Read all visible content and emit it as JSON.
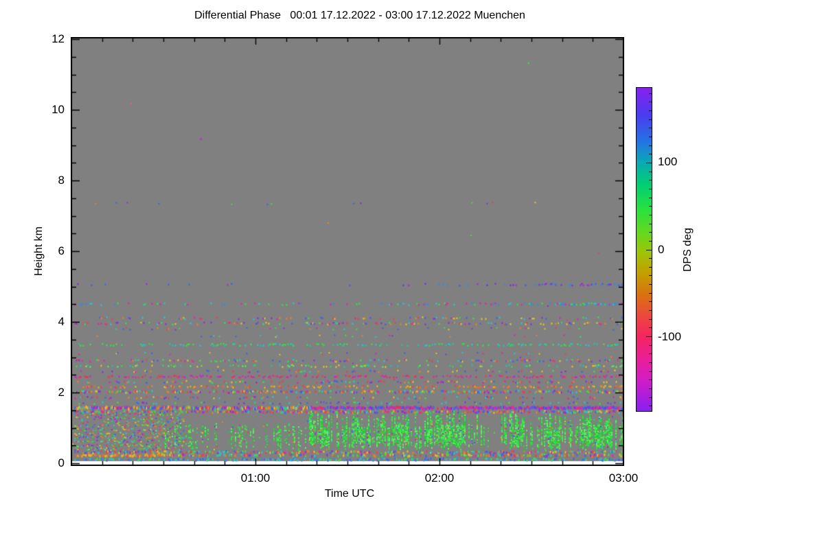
{
  "chart_data": {
    "type": "heatmap",
    "title": "Differential Phase   00:01 17.12.2022 - 03:00 17.12.2022 Muenchen",
    "xlabel": "Time UTC",
    "ylabel": "Height km",
    "x_ticks": [
      {
        "hour": 1,
        "label": "01:00"
      },
      {
        "hour": 2,
        "label": "02:00"
      },
      {
        "hour": 3,
        "label": "03:00"
      }
    ],
    "x_minor_step_min": 10,
    "x_range_hours": [
      0.0167,
      3.0
    ],
    "y_ticks": [
      0,
      2,
      4,
      6,
      8,
      10,
      12
    ],
    "y_minor_step_km": 0.5,
    "y_range_km": [
      0,
      12
    ],
    "background_color": "#808080",
    "no_data_color": "#ffffff",
    "frame_color": "#000000",
    "colorbar": {
      "label": "DPS deg",
      "range": [
        -186,
        186
      ],
      "ticks": [
        {
          "v": 100,
          "label": "100"
        },
        {
          "v": 0,
          "label": "0"
        },
        {
          "v": -100,
          "label": "-100"
        }
      ],
      "minor_step_deg": 10,
      "stops": [
        {
          "v": 186,
          "c": "#8A1FF0"
        },
        {
          "v": 155,
          "c": "#4A3CF0"
        },
        {
          "v": 125,
          "c": "#2472E4"
        },
        {
          "v": 100,
          "c": "#0AAAB4"
        },
        {
          "v": 75,
          "c": "#00CE74"
        },
        {
          "v": 45,
          "c": "#2AE23C"
        },
        {
          "v": 15,
          "c": "#6FD51A"
        },
        {
          "v": -5,
          "c": "#A3C206"
        },
        {
          "v": -30,
          "c": "#C49B00"
        },
        {
          "v": -55,
          "c": "#DC6C14"
        },
        {
          "v": -80,
          "c": "#EE4243"
        },
        {
          "v": -100,
          "c": "#F5255F"
        },
        {
          "v": -125,
          "c": "#EC1E96"
        },
        {
          "v": -150,
          "c": "#D11DC4"
        },
        {
          "v": -186,
          "c": "#8A1FF2"
        }
      ]
    },
    "palettes": {
      "rainbow": [
        "#F23B4C",
        "#F57F17",
        "#E8C520",
        "#3BE049",
        "#22C8D6",
        "#3A62F2",
        "#8A2BE2",
        "#E81FB0"
      ],
      "warm": [
        "#F57F17",
        "#F2A71B",
        "#E8C520",
        "#F23B4C",
        "#EE6A2A"
      ],
      "pinkred": [
        "#F5255F",
        "#E81FB0",
        "#F23B4C",
        "#C724D6"
      ],
      "coolmix": [
        "#22C8D6",
        "#3A62F2",
        "#8A2BE2",
        "#3BE049"
      ],
      "tealgreen": [
        "#18C9A8",
        "#2BE53A",
        "#22C8D6",
        "#3BE049"
      ],
      "greenmix": [
        "#2BE53A",
        "#53F060",
        "#18C9A8",
        "#E8C520"
      ],
      "bluepurple": [
        "#3A62F2",
        "#7A2BF0",
        "#A428E8",
        "#2B8CF0"
      ],
      "cyanblue": [
        "#22C8D6",
        "#2B8CF0",
        "#3BE049",
        "#3A62F2"
      ],
      "bluemag": [
        "#C724D6",
        "#7A2BF0",
        "#E81FB0",
        "#3A62F2",
        "#F5255F"
      ],
      "coolgreen": [
        "#2BE53A",
        "#22C8D6",
        "#2B8CF0",
        "#E81FB0"
      ],
      "green": [
        "#2BE53A",
        "#45EE45",
        "#1ECC30",
        "#63F56A",
        "#30D84A"
      ]
    },
    "noise_bands": [
      {
        "h": 0.1,
        "th": 0.06,
        "d": 0.5,
        "pal": "cyanblue"
      },
      {
        "h": 0.22,
        "th": 0.07,
        "d": 0.8,
        "pal": "warm",
        "t1": 0.55
      },
      {
        "h": 0.22,
        "th": 0.07,
        "d": 0.4,
        "pal": "rainbow",
        "t0": 0.55
      },
      {
        "h": 0.31,
        "th": 0.06,
        "d": 0.55,
        "pal": "rainbow"
      },
      {
        "h": 1.45,
        "th": 0.06,
        "d": 0.6,
        "pal": "rainbow"
      },
      {
        "h": 1.56,
        "th": 0.08,
        "d": 0.95,
        "pal": "rainbow",
        "t1": 1.3
      },
      {
        "h": 1.56,
        "th": 0.08,
        "d": 0.9,
        "pal": "bluemag",
        "t0": 1.3
      },
      {
        "h": 1.7,
        "th": 0.05,
        "d": 0.18,
        "pal": "coolmix"
      },
      {
        "h": 1.85,
        "th": 0.05,
        "d": 0.22,
        "pal": "rainbow"
      },
      {
        "h": 2.02,
        "th": 0.06,
        "d": 0.5,
        "pal": "rainbow"
      },
      {
        "h": 2.16,
        "th": 0.05,
        "d": 0.35,
        "pal": "warm"
      },
      {
        "h": 2.3,
        "th": 0.05,
        "d": 0.25,
        "pal": "rainbow"
      },
      {
        "h": 2.45,
        "th": 0.05,
        "d": 0.4,
        "pal": "pinkred"
      },
      {
        "h": 2.6,
        "th": 0.05,
        "d": 0.15,
        "pal": "rainbow"
      },
      {
        "h": 2.75,
        "th": 0.05,
        "d": 0.25,
        "pal": "greenmix"
      },
      {
        "h": 2.9,
        "th": 0.05,
        "d": 0.3,
        "pal": "rainbow"
      },
      {
        "h": 3.1,
        "th": 0.04,
        "d": 0.08,
        "pal": "rainbow"
      },
      {
        "h": 3.35,
        "th": 0.05,
        "d": 0.3,
        "pal": "tealgreen"
      },
      {
        "h": 3.6,
        "th": 0.04,
        "d": 0.05,
        "pal": "rainbow"
      },
      {
        "h": 3.8,
        "th": 0.04,
        "d": 0.1,
        "pal": "rainbow"
      },
      {
        "h": 3.95,
        "th": 0.05,
        "d": 0.28,
        "pal": "rainbow"
      },
      {
        "h": 4.1,
        "th": 0.05,
        "d": 0.22,
        "pal": "rainbow"
      },
      {
        "h": 4.5,
        "th": 0.05,
        "d": 0.18,
        "pal": "coolgreen",
        "dEnd": 0.6
      },
      {
        "h": 5.05,
        "th": 0.05,
        "d": 0.05,
        "pal": "bluepurple",
        "dEnd": 0.5
      },
      {
        "h": 7.35,
        "th": 0.04,
        "d": 0.04,
        "pal": "rainbow"
      }
    ],
    "sparse_regions": [
      {
        "h0": 1.6,
        "h1": 4.6,
        "d": 0.012,
        "pal": "rainbow"
      },
      {
        "h0": 0.35,
        "h1": 1.42,
        "d": 0.05,
        "pal": "rainbow"
      },
      {
        "h0": 4.6,
        "h1": 7.3,
        "d": 0.002,
        "pal": "rainbow"
      }
    ],
    "left_block": {
      "t0": 0.0167,
      "t1": 0.62,
      "h0": 0.42,
      "h1": 1.4,
      "rows": 10,
      "d": 0.6,
      "pal": "rainbow",
      "green_fraction": 0.25
    },
    "signal": {
      "t0": 0.5,
      "t1": 3.0,
      "t_strong": 1.28,
      "h_base_min": 0.4,
      "h_base_max": 0.62,
      "h_top_min": 0.95,
      "h_top_max": 1.45,
      "col_prob_weak": 0.55,
      "col_prob_strong": 0.92,
      "fill_weak": 0.4,
      "fill_strong": 0.7,
      "pal": "green",
      "outlier_pal": "rainbow",
      "outlier_frac": 0.06,
      "tail_prob": 0.3,
      "tail_h": 0.2,
      "tail_d": 0.15
    },
    "isolated_dots": [
      {
        "t": 0.32,
        "h": 10.2,
        "c": "#F050A0"
      },
      {
        "t": 0.7,
        "h": 9.2,
        "c": "#C724D6"
      },
      {
        "t": 2.48,
        "h": 11.35,
        "c": "#3BE049"
      }
    ]
  }
}
